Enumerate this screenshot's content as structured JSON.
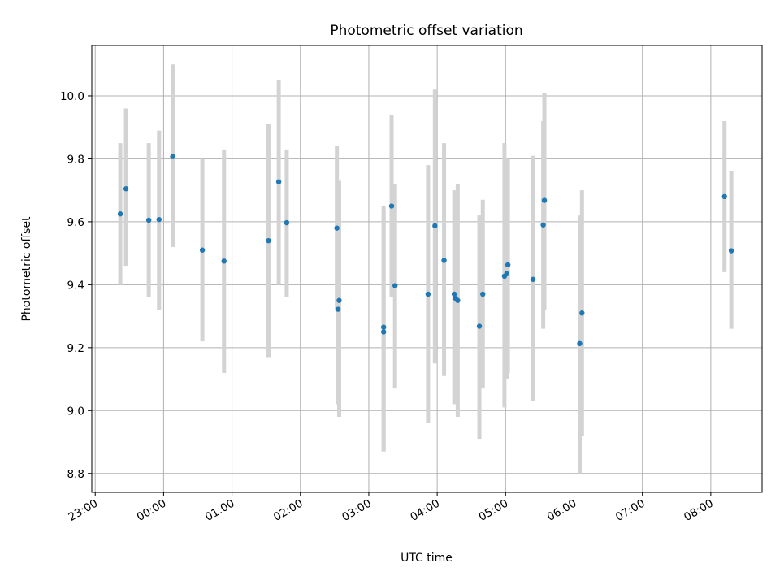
{
  "chart_data": {
    "type": "scatter",
    "title": "Photometric offset variation",
    "xlabel": "UTC time",
    "ylabel": "Photometric offset",
    "x_ticks": [
      "23:00",
      "00:00",
      "01:00",
      "02:00",
      "03:00",
      "04:00",
      "05:00",
      "06:00",
      "07:00",
      "08:00"
    ],
    "y_ticks": [
      "8.8",
      "9.0",
      "9.2",
      "9.4",
      "9.6",
      "9.8",
      "10.0"
    ],
    "xlim": [
      "22:57",
      "08:45"
    ],
    "ylim": [
      8.74,
      10.16
    ],
    "grid": true,
    "colors": {
      "point": "#1f77b4",
      "errorbar": "#d3d3d3",
      "grid": "#b0b0b0"
    },
    "points": [
      {
        "t": "23:22",
        "y": 9.625,
        "lo": 9.4,
        "hi": 9.85
      },
      {
        "t": "23:27",
        "y": 9.705,
        "lo": 9.46,
        "hi": 9.96
      },
      {
        "t": "23:47",
        "y": 9.605,
        "lo": 9.36,
        "hi": 9.85
      },
      {
        "t": "23:56",
        "y": 9.607,
        "lo": 9.32,
        "hi": 9.89
      },
      {
        "t": "00:08",
        "y": 9.807,
        "lo": 9.52,
        "hi": 10.1
      },
      {
        "t": "00:34",
        "y": 9.51,
        "lo": 9.22,
        "hi": 9.8
      },
      {
        "t": "00:53",
        "y": 9.475,
        "lo": 9.12,
        "hi": 9.83
      },
      {
        "t": "01:32",
        "y": 9.54,
        "lo": 9.17,
        "hi": 9.91
      },
      {
        "t": "01:41",
        "y": 9.727,
        "lo": 9.4,
        "hi": 10.05
      },
      {
        "t": "01:48",
        "y": 9.597,
        "lo": 9.36,
        "hi": 9.83
      },
      {
        "t": "02:32",
        "y": 9.58,
        "lo": 9.32,
        "hi": 9.84
      },
      {
        "t": "02:33",
        "y": 9.322,
        "lo": 9.02,
        "hi": 9.62
      },
      {
        "t": "02:34",
        "y": 9.35,
        "lo": 8.98,
        "hi": 9.73
      },
      {
        "t": "03:13",
        "y": 9.265,
        "lo": 8.87,
        "hi": 9.65
      },
      {
        "t": "03:13",
        "y": 9.25,
        "lo": 8.87,
        "hi": 9.63
      },
      {
        "t": "03:20",
        "y": 9.65,
        "lo": 9.36,
        "hi": 9.94
      },
      {
        "t": "03:23",
        "y": 9.397,
        "lo": 9.07,
        "hi": 9.72
      },
      {
        "t": "03:52",
        "y": 9.37,
        "lo": 8.96,
        "hi": 9.78
      },
      {
        "t": "03:58",
        "y": 9.587,
        "lo": 9.15,
        "hi": 10.02
      },
      {
        "t": "04:06",
        "y": 9.477,
        "lo": 9.11,
        "hi": 9.85
      },
      {
        "t": "04:15",
        "y": 9.37,
        "lo": 9.02,
        "hi": 9.7
      },
      {
        "t": "04:16",
        "y": 9.357,
        "lo": 9.02,
        "hi": 9.69
      },
      {
        "t": "04:18",
        "y": 9.35,
        "lo": 8.98,
        "hi": 9.72
      },
      {
        "t": "04:37",
        "y": 9.268,
        "lo": 8.91,
        "hi": 9.62
      },
      {
        "t": "04:40",
        "y": 9.37,
        "lo": 9.07,
        "hi": 9.67
      },
      {
        "t": "04:59",
        "y": 9.427,
        "lo": 9.01,
        "hi": 9.85
      },
      {
        "t": "05:01",
        "y": 9.435,
        "lo": 9.1,
        "hi": 9.8
      },
      {
        "t": "05:02",
        "y": 9.463,
        "lo": 9.12,
        "hi": 9.8
      },
      {
        "t": "05:24",
        "y": 9.417,
        "lo": 9.03,
        "hi": 9.81
      },
      {
        "t": "05:33",
        "y": 9.59,
        "lo": 9.26,
        "hi": 9.92
      },
      {
        "t": "05:34",
        "y": 9.668,
        "lo": 9.32,
        "hi": 10.01
      },
      {
        "t": "06:05",
        "y": 9.213,
        "lo": 8.8,
        "hi": 9.62
      },
      {
        "t": "06:07",
        "y": 9.31,
        "lo": 8.92,
        "hi": 9.7
      },
      {
        "t": "08:12",
        "y": 9.68,
        "lo": 9.44,
        "hi": 9.92
      },
      {
        "t": "08:18",
        "y": 9.508,
        "lo": 9.26,
        "hi": 9.76
      }
    ]
  }
}
